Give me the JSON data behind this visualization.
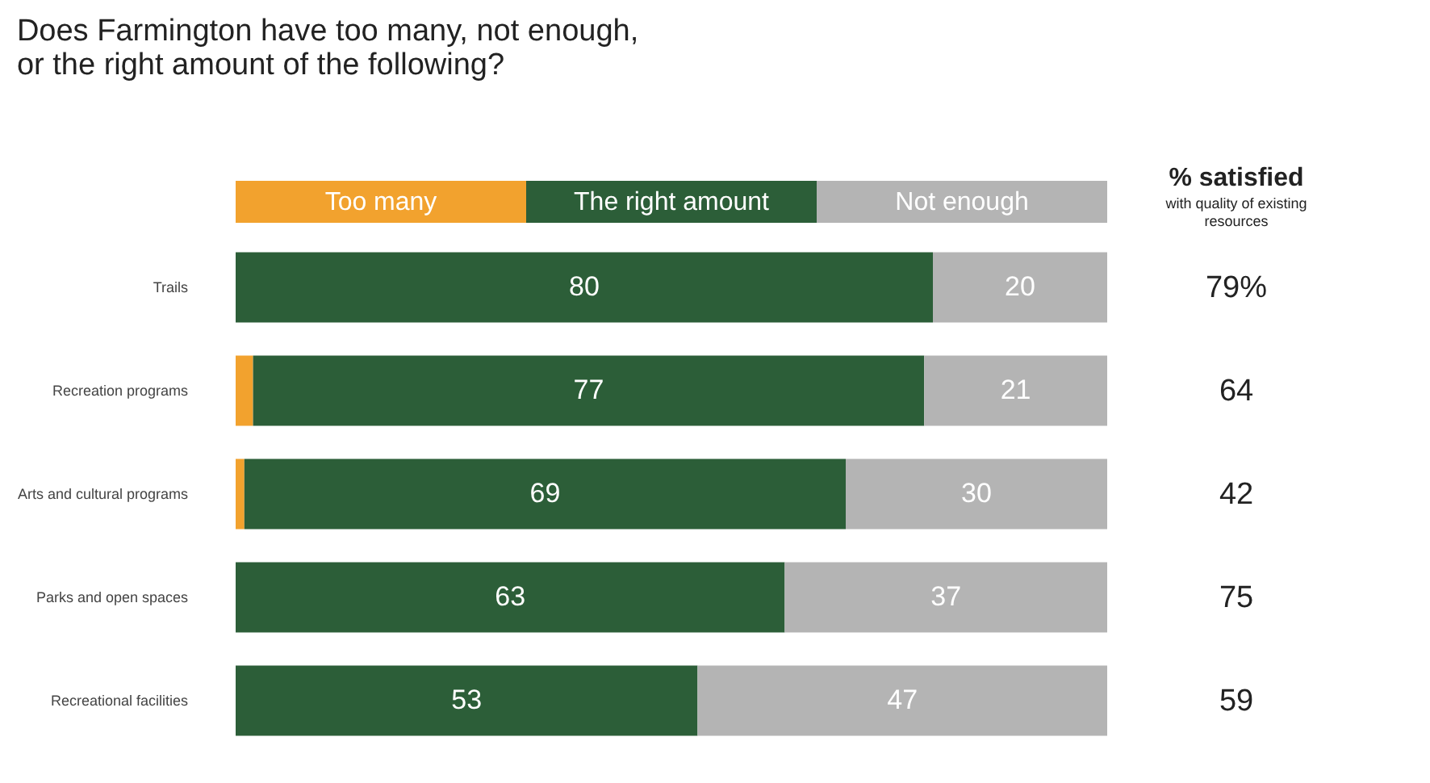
{
  "chart_data": {
    "type": "bar",
    "orientation": "horizontal",
    "stacked": true,
    "title": [
      "Does Farmington have too many, not enough,",
      "or the right amount of the following?"
    ],
    "categories": [
      "Trails",
      "Recreation programs",
      "Arts and cultural programs",
      "Parks and open spaces",
      "Recreational facilities"
    ],
    "series": [
      {
        "name": "Too many",
        "color": "#f2a22e",
        "values": [
          0,
          2,
          1,
          0,
          0
        ],
        "value_labels": [
          null,
          null,
          null,
          null,
          null
        ]
      },
      {
        "name": "The right amount",
        "color": "#2c5e38",
        "values": [
          80,
          77,
          69,
          63,
          53
        ],
        "value_labels": [
          "80",
          "77",
          "69",
          "63",
          "53"
        ]
      },
      {
        "name": "Not enough",
        "color": "#b4b4b4",
        "values": [
          20,
          21,
          30,
          37,
          47
        ],
        "value_labels": [
          "20",
          "21",
          "30",
          "37",
          "47"
        ]
      }
    ],
    "legend": "top",
    "grid": false,
    "annotations": [
      "% satisfied",
      "with quality of existing resources",
      "79%",
      "64",
      "42",
      "75",
      "59"
    ]
  }
}
